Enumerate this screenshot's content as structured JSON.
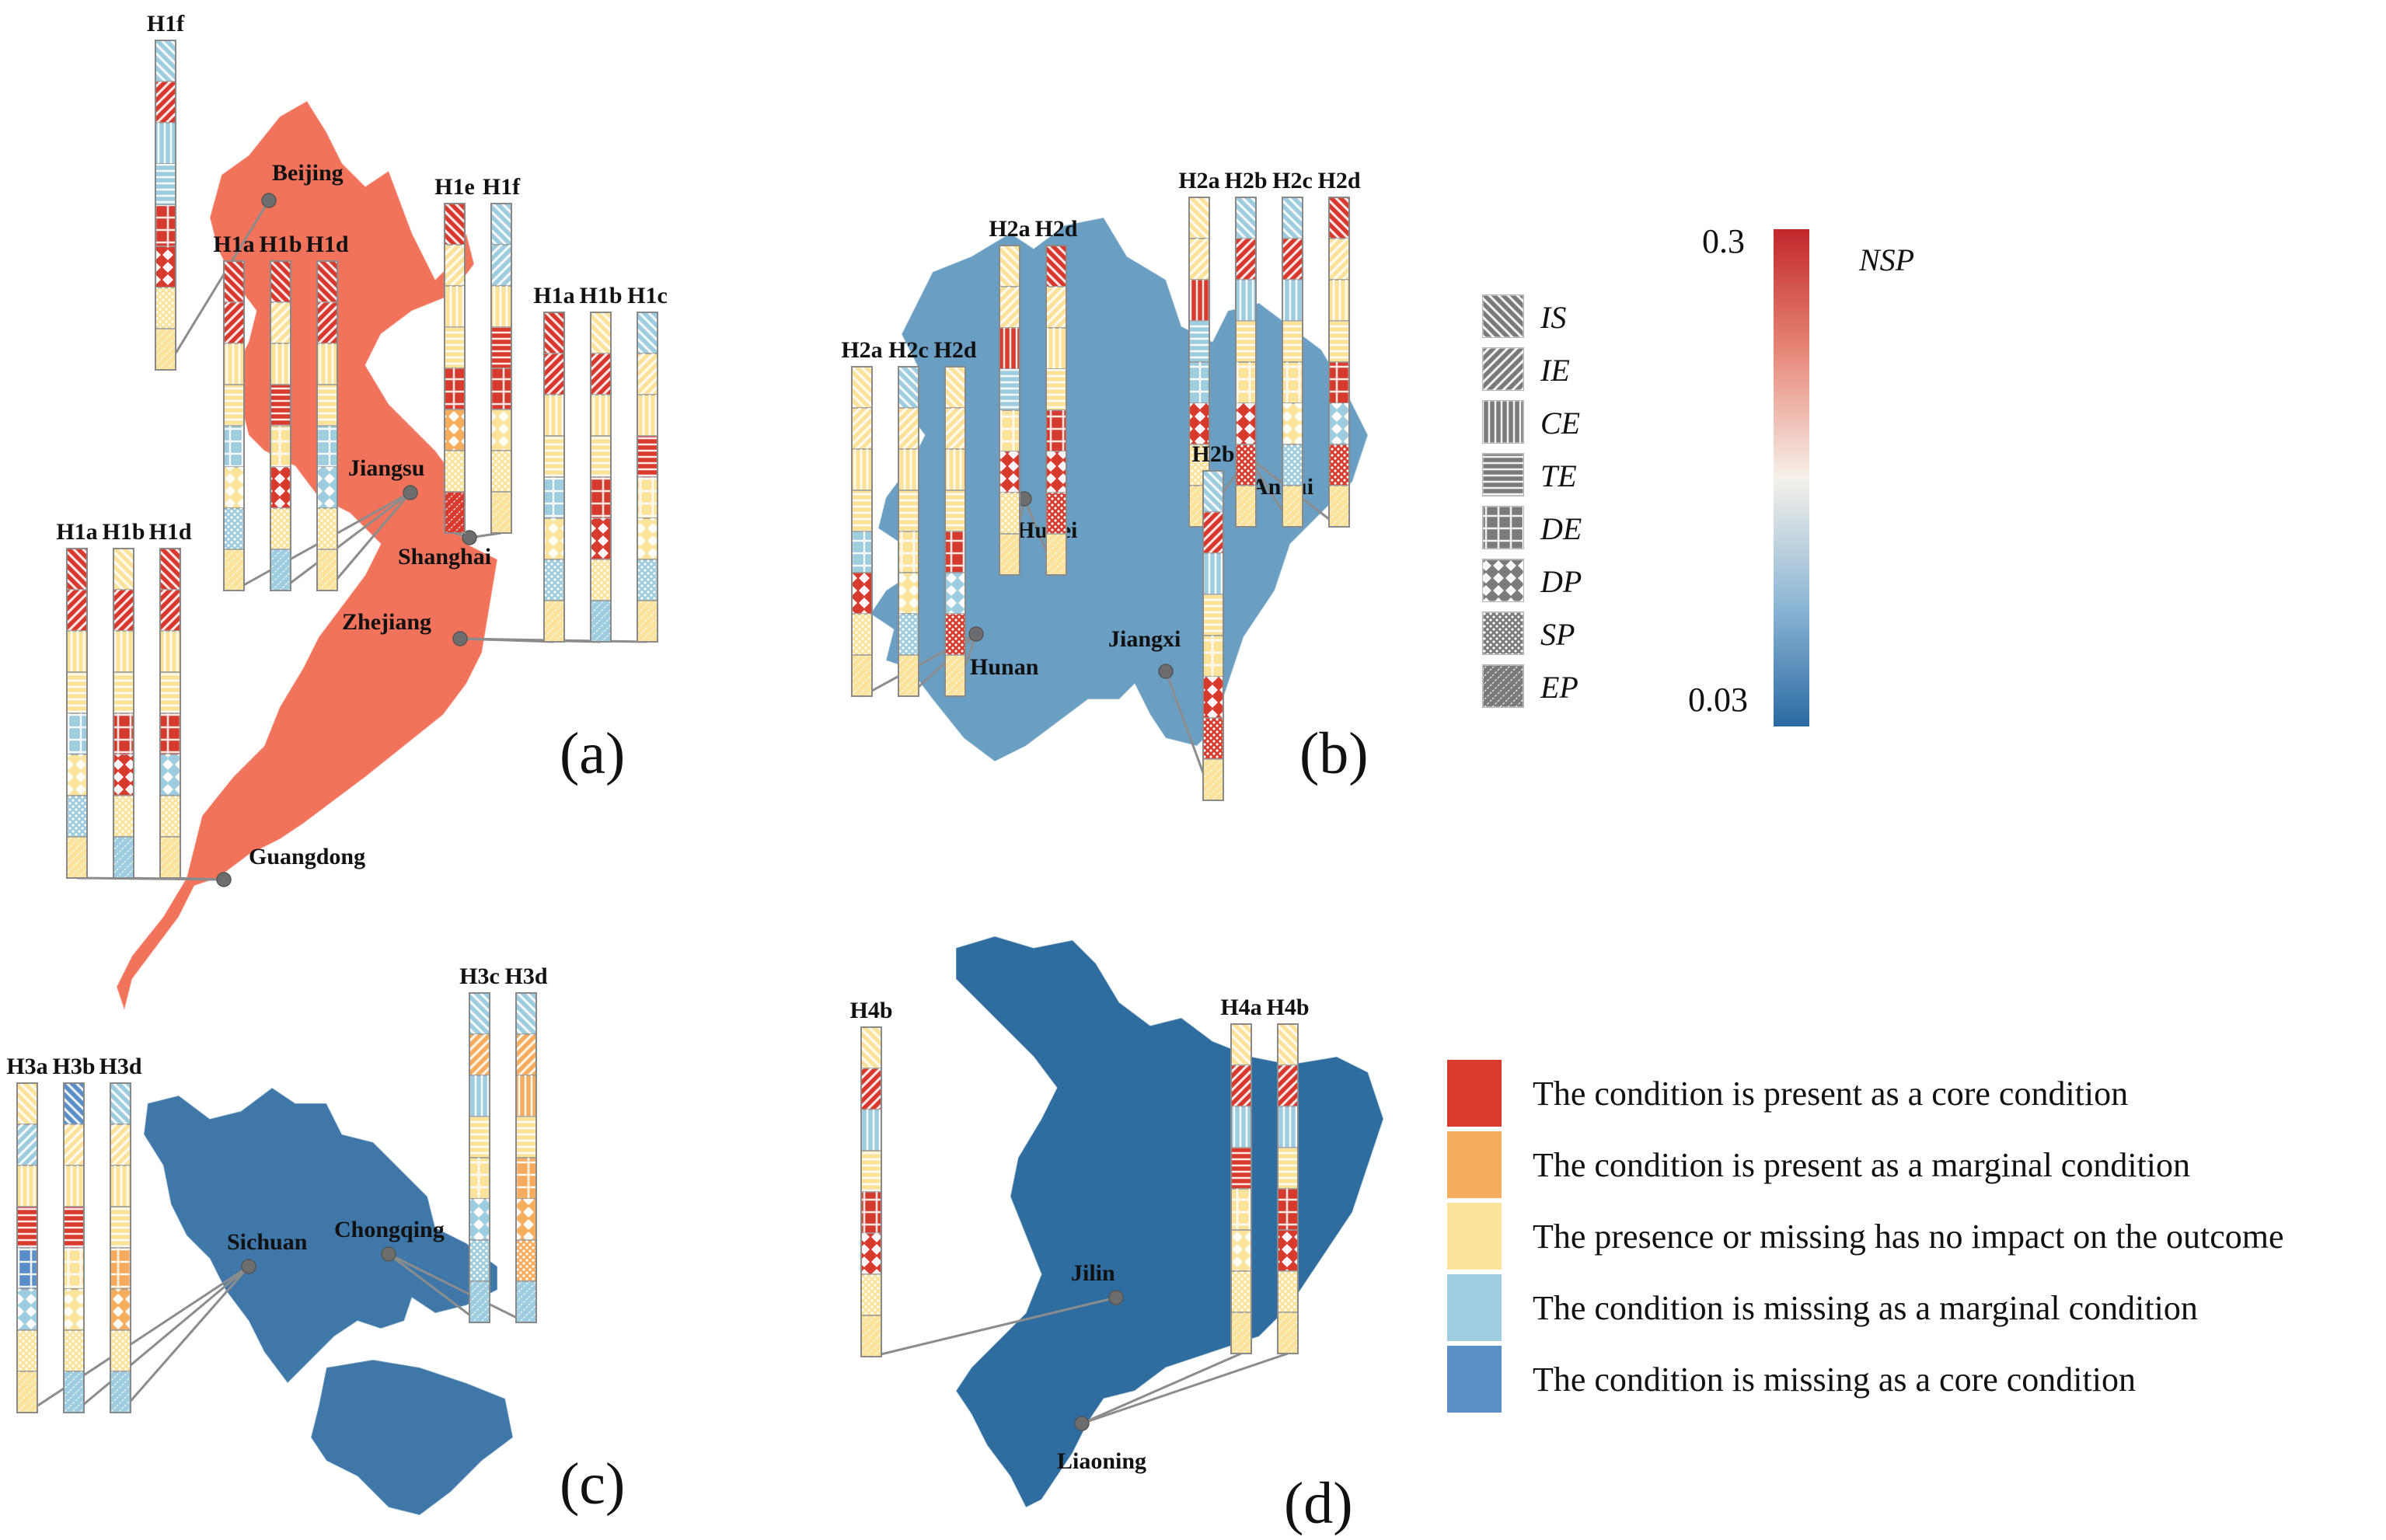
{
  "colors": {
    "coastal_region": "#f2735c",
    "central_region": "#6b9ec3",
    "west_region": "#3f78a8",
    "northeast_region": "#2f6c9f",
    "core_present": "#d93a2e",
    "marginal_present": "#f7ad5f",
    "no_impact": "#fbe39c",
    "marginal_missing": "#9fcde0",
    "core_missing": "#5b8fc8"
  },
  "panels": {
    "a": "(a)",
    "b": "(b)",
    "c": "(c)",
    "d": "(d)"
  },
  "provinces": {
    "beijing": "Beijing",
    "jiangsu": "Jiangsu",
    "shanghai": "Shanghai",
    "zhejiang": "Zhejiang",
    "guangdong": "Guangdong",
    "hubei": "Hubei",
    "hunan": "Hunan",
    "anhui": "Anhui",
    "jiangxi": "Jiangxi",
    "sichuan": "Sichuan",
    "chongqing": "Chongqing",
    "jilin": "Jilin",
    "liaoning": "Liaoning"
  },
  "pattern_legend": [
    "IS",
    "IE",
    "CE",
    "TE",
    "DE",
    "DP",
    "SP",
    "EP"
  ],
  "nsp_legend": {
    "title": "NSP",
    "max": "0.3",
    "min": "0.03"
  },
  "condition_legend": [
    {
      "color": "core_present",
      "label": "The condition is present as a core condition"
    },
    {
      "color": "marginal_present",
      "label": "The condition is present as a marginal condition"
    },
    {
      "color": "no_impact",
      "label": "The presence or missing has no impact on the outcome"
    },
    {
      "color": "marginal_missing",
      "label": "The condition is missing as a marginal condition"
    },
    {
      "color": "core_missing",
      "label": "The condition is missing as a core condition"
    }
  ],
  "bar_groups": [
    {
      "province": "Beijing",
      "labels": [
        "H1f"
      ],
      "columns": [
        [
          "b",
          "r",
          "b",
          "b",
          "r",
          "r",
          "y",
          "y"
        ]
      ]
    },
    {
      "province": "Jiangsu",
      "labels": [
        "H1a",
        "H1b",
        "H1d"
      ],
      "columns": [
        [
          "r",
          "r",
          "y",
          "y",
          "b",
          "y",
          "b",
          "y"
        ],
        [
          "r",
          "y",
          "y",
          "r",
          "y",
          "r",
          "y",
          "b"
        ],
        [
          "r",
          "r",
          "y",
          "y",
          "b",
          "b",
          "y",
          "y"
        ]
      ]
    },
    {
      "province": "Shanghai",
      "labels": [
        "H1e",
        "H1f"
      ],
      "columns": [
        [
          "r",
          "y",
          "y",
          "y",
          "r",
          "m",
          "y",
          "r"
        ],
        [
          "b",
          "b",
          "y",
          "r",
          "r",
          "y",
          "y",
          "y"
        ]
      ]
    },
    {
      "province": "Zhejiang",
      "labels": [
        "H1a",
        "H1b",
        "H1c"
      ],
      "columns": [
        [
          "r",
          "r",
          "y",
          "y",
          "b",
          "y",
          "b",
          "y"
        ],
        [
          "y",
          "r",
          "y",
          "y",
          "r",
          "r",
          "y",
          "b"
        ],
        [
          "b",
          "y",
          "y",
          "r",
          "y",
          "y",
          "b",
          "y"
        ]
      ]
    },
    {
      "province": "Guangdong",
      "labels": [
        "H1a",
        "H1b",
        "H1d"
      ],
      "columns": [
        [
          "r",
          "r",
          "y",
          "y",
          "b",
          "y",
          "b",
          "y"
        ],
        [
          "y",
          "r",
          "y",
          "y",
          "r",
          "r",
          "y",
          "b"
        ],
        [
          "r",
          "r",
          "y",
          "y",
          "r",
          "b",
          "y",
          "y"
        ]
      ]
    },
    {
      "province": "Hubei",
      "labels": [
        "H2a",
        "H2d"
      ],
      "columns": [
        [
          "y",
          "y",
          "r",
          "b",
          "y",
          "r",
          "y",
          "y"
        ],
        [
          "r",
          "y",
          "y",
          "y",
          "r",
          "r",
          "r",
          "y"
        ]
      ]
    },
    {
      "province": "Hunan",
      "labels": [
        "H2a",
        "H2c",
        "H2d"
      ],
      "columns": [
        [
          "y",
          "y",
          "y",
          "y",
          "b",
          "r",
          "y",
          "y"
        ],
        [
          "b",
          "y",
          "y",
          "y",
          "y",
          "y",
          "b",
          "y"
        ],
        [
          "y",
          "y",
          "y",
          "y",
          "r",
          "b",
          "r",
          "y"
        ]
      ]
    },
    {
      "province": "Anhui",
      "labels": [
        "H2a",
        "H2b",
        "H2c",
        "H2d"
      ],
      "columns": [
        [
          "y",
          "y",
          "r",
          "b",
          "b",
          "r",
          "y",
          "y"
        ],
        [
          "b",
          "r",
          "b",
          "y",
          "y",
          "r",
          "r",
          "y"
        ],
        [
          "b",
          "r",
          "b",
          "y",
          "y",
          "y",
          "b",
          "y"
        ],
        [
          "r",
          "y",
          "y",
          "y",
          "r",
          "b",
          "r",
          "y"
        ]
      ]
    },
    {
      "province": "Jiangxi",
      "labels": [
        "H2b"
      ],
      "columns": [
        [
          "b",
          "r",
          "b",
          "y",
          "y",
          "r",
          "r",
          "y"
        ]
      ]
    },
    {
      "province": "Sichuan",
      "labels": [
        "H3a",
        "H3b",
        "H3d"
      ],
      "columns": [
        [
          "y",
          "b",
          "y",
          "r",
          "c",
          "b",
          "y",
          "y"
        ],
        [
          "c",
          "y",
          "y",
          "r",
          "y",
          "y",
          "y",
          "b"
        ],
        [
          "b",
          "y",
          "y",
          "y",
          "m",
          "m",
          "y",
          "b"
        ]
      ]
    },
    {
      "province": "Chongqing",
      "labels": [
        "H3c",
        "H3d"
      ],
      "columns": [
        [
          "b",
          "m",
          "b",
          "y",
          "y",
          "b",
          "b",
          "b"
        ],
        [
          "b",
          "m",
          "m",
          "y",
          "m",
          "m",
          "m",
          "b"
        ]
      ]
    },
    {
      "province": "Jilin",
      "labels": [
        "H4b"
      ],
      "columns": [
        [
          "y",
          "r",
          "b",
          "y",
          "r",
          "r",
          "y",
          "y"
        ]
      ]
    },
    {
      "province": "Liaoning",
      "labels": [
        "H4a",
        "H4b"
      ],
      "columns": [
        [
          "y",
          "r",
          "b",
          "r",
          "y",
          "y",
          "y",
          "y"
        ],
        [
          "y",
          "r",
          "b",
          "y",
          "r",
          "r",
          "y",
          "y"
        ]
      ]
    }
  ]
}
